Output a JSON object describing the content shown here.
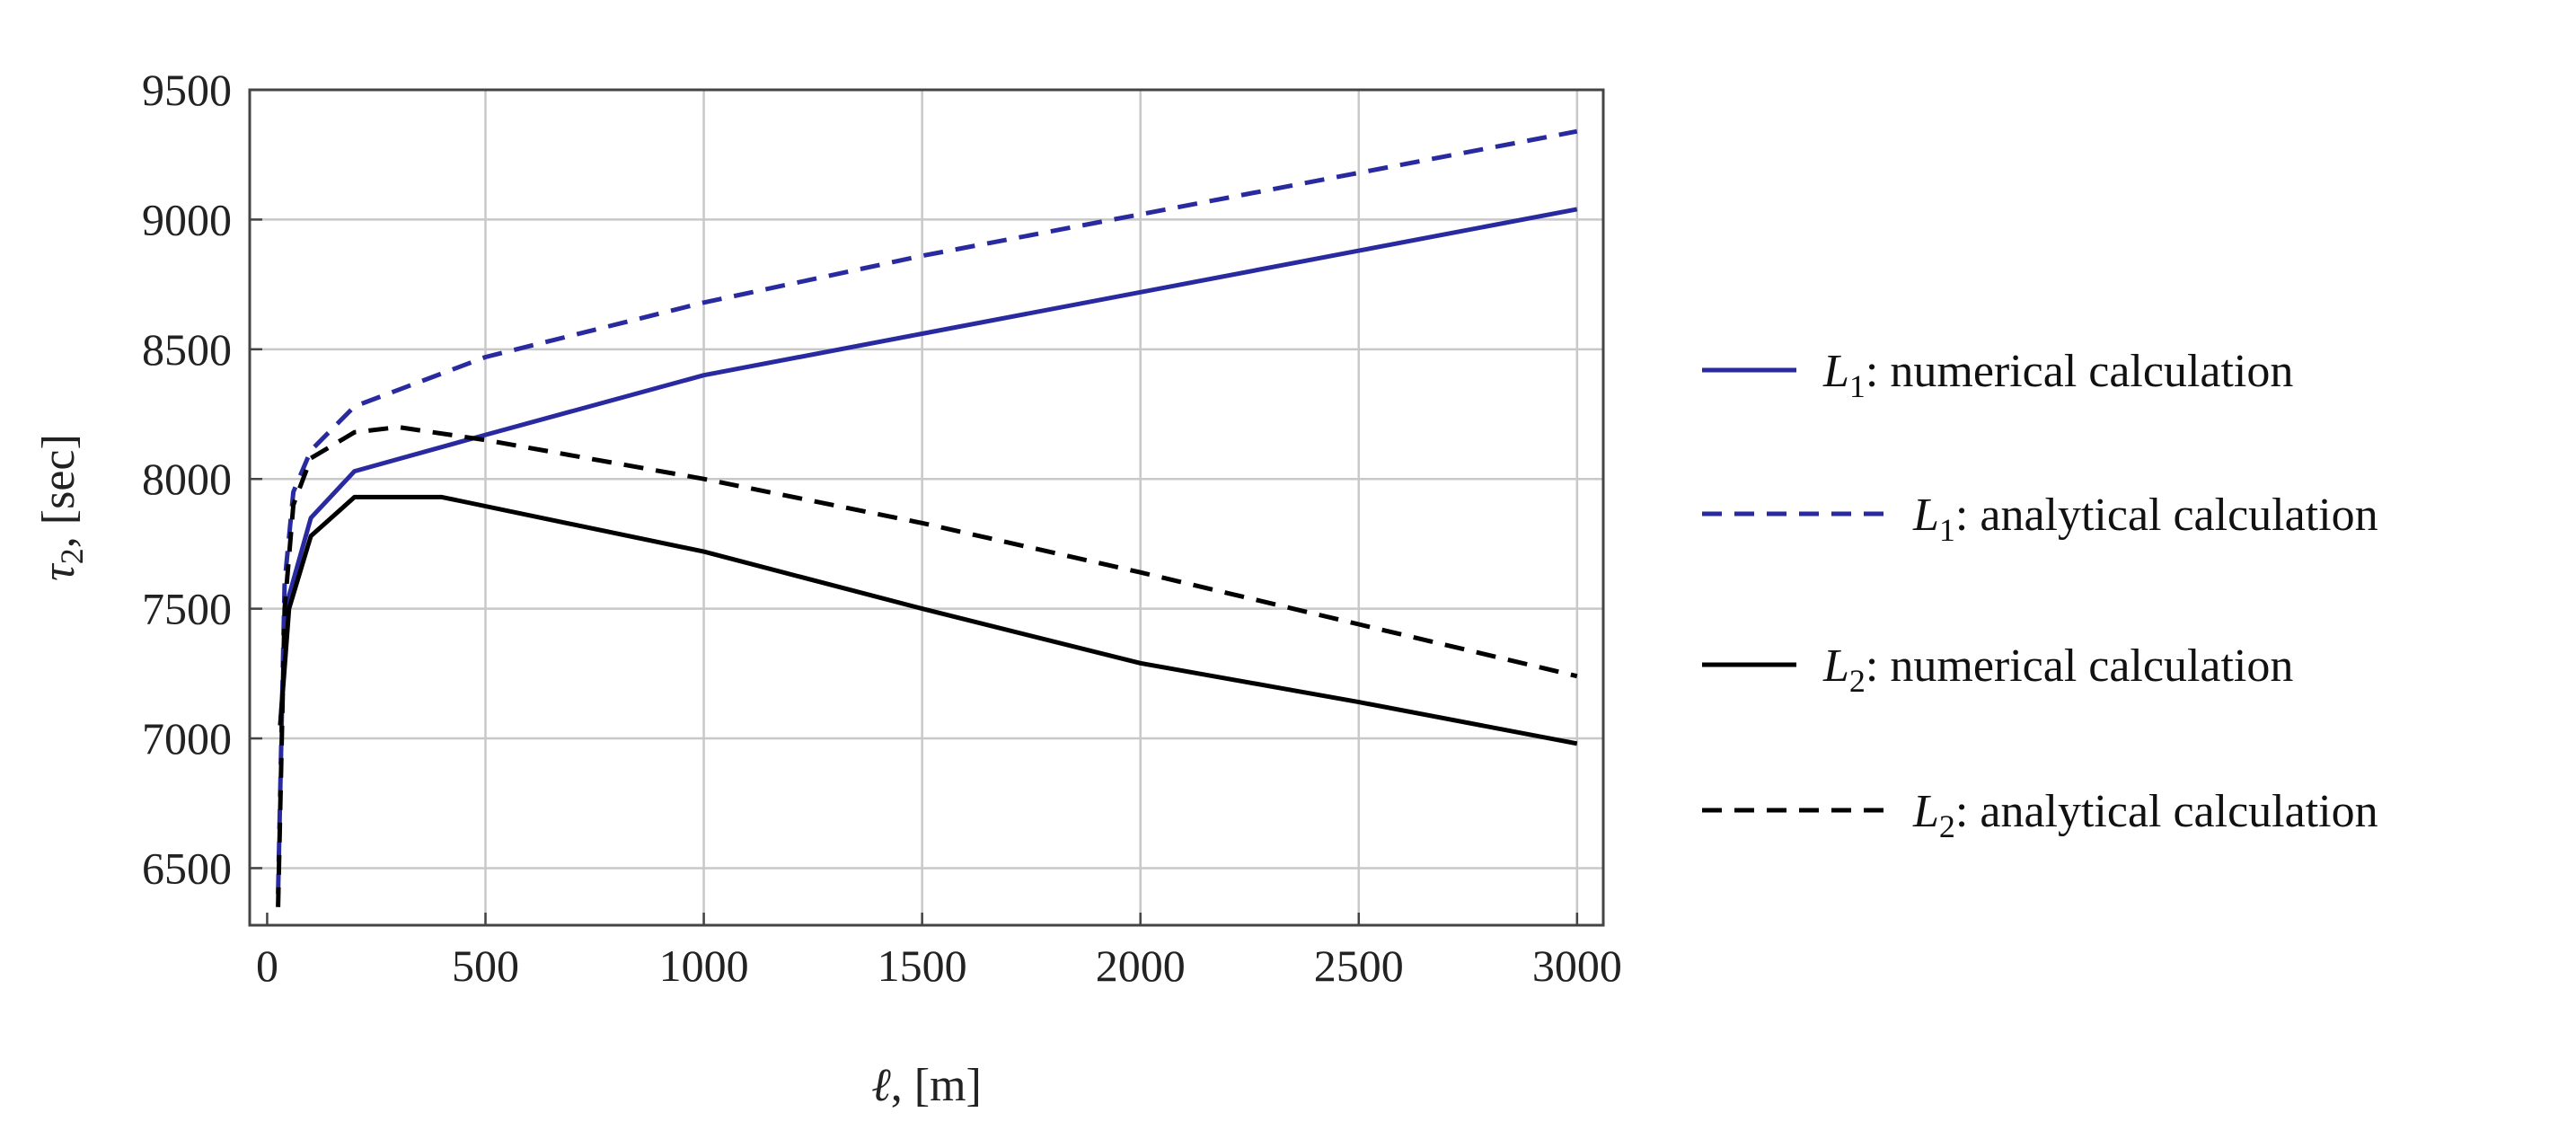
{
  "chart_data": {
    "type": "line",
    "xlabel_var": "ℓ",
    "xlabel_unit": ", [m]",
    "ylabel_var": "τ",
    "ylabel_sub": "2",
    "ylabel_unit": ", [sec]",
    "xlim": [
      -40,
      3060
    ],
    "ylim": [
      6280,
      9500
    ],
    "x_ticks": [
      0,
      500,
      1000,
      1500,
      2000,
      2500,
      3000
    ],
    "x_tick_labels": [
      "0",
      "500",
      "1000",
      "1500",
      "2000",
      "2500",
      "3000"
    ],
    "y_ticks": [
      6500,
      7000,
      7500,
      8000,
      8500,
      9000,
      9500
    ],
    "y_tick_labels": [
      "6500",
      "7000",
      "7500",
      "8000",
      "8500",
      "9000",
      "9500"
    ],
    "grid": true,
    "legend_position": "right",
    "series": [
      {
        "var": "L",
        "sub": "1",
        "label": ": numerical calculation",
        "color": "#2a2aa0",
        "dash": "solid",
        "x": [
          30,
          50,
          100,
          200,
          500,
          1000,
          1500,
          2000,
          2500,
          3000
        ],
        "y": [
          7050,
          7550,
          7850,
          8030,
          8170,
          8400,
          8560,
          8720,
          8880,
          9040
        ]
      },
      {
        "var": "L",
        "sub": "1",
        "label": ": analytical calculation",
        "color": "#2a2aa0",
        "dash": "dashed",
        "x": [
          25,
          40,
          60,
          100,
          200,
          500,
          1000,
          1500,
          2000,
          2500,
          3000
        ],
        "y": [
          6400,
          7600,
          7950,
          8110,
          8280,
          8470,
          8680,
          8860,
          9020,
          9180,
          9340
        ]
      },
      {
        "var": "L",
        "sub": "2",
        "label": ": numerical calculation",
        "color": "#000000",
        "dash": "solid",
        "x": [
          30,
          50,
          100,
          200,
          400,
          1000,
          1500,
          2000,
          2500,
          3000
        ],
        "y": [
          7050,
          7500,
          7780,
          7930,
          7930,
          7720,
          7500,
          7290,
          7140,
          6980
        ]
      },
      {
        "var": "L",
        "sub": "2",
        "label": ": analytical calculation",
        "color": "#000000",
        "dash": "dashed",
        "x": [
          25,
          40,
          60,
          100,
          200,
          300,
          500,
          1000,
          1500,
          2000,
          2500,
          3000
        ],
        "y": [
          6350,
          7500,
          7900,
          8080,
          8180,
          8200,
          8150,
          8000,
          7830,
          7640,
          7440,
          7240
        ]
      }
    ]
  }
}
